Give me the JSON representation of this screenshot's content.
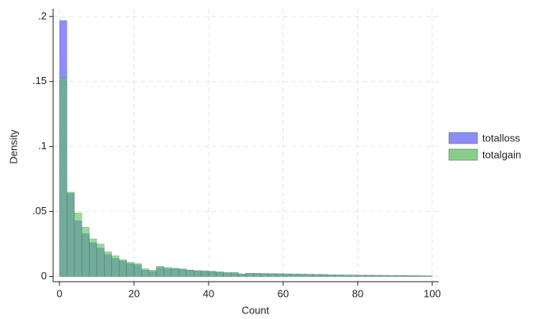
{
  "chart_data": {
    "type": "histogram",
    "xlabel": "Count",
    "ylabel": "Density",
    "bins": [
      0,
      2,
      4,
      6,
      8,
      10,
      12,
      14,
      16,
      18,
      20,
      22,
      24,
      26,
      28,
      30,
      32,
      34,
      36,
      38,
      40,
      42,
      44,
      46,
      48,
      50,
      52,
      54,
      56,
      58,
      60,
      62,
      64,
      66,
      68,
      70,
      72,
      74,
      76,
      78,
      80,
      82,
      84,
      86,
      88,
      90,
      92,
      94,
      96,
      98,
      100
    ],
    "series": [
      {
        "name": "totalloss",
        "color": "#7f7fff",
        "values": [
          0.197,
          0.064,
          0.043,
          0.033,
          0.026,
          0.022,
          0.017,
          0.014,
          0.012,
          0.01,
          0.009,
          0.005,
          0.004,
          0.007,
          0.006,
          0.006,
          0.0055,
          0.005,
          0.0045,
          0.004,
          0.004,
          0.0035,
          0.003,
          0.003,
          0.002,
          0.0025,
          0.0024,
          0.0023,
          0.0022,
          0.0021,
          0.002,
          0.0019,
          0.0018,
          0.0017,
          0.0016,
          0.0015,
          0.0012,
          0.0012,
          0.0011,
          0.0011,
          0.001,
          0.001,
          0.0009,
          0.0009,
          0.0008,
          0.0008,
          0.0007,
          0.0007,
          0.0006,
          0.0005
        ]
      },
      {
        "name": "totalgain",
        "color": "#5fbf5f",
        "values": [
          0.153,
          0.065,
          0.049,
          0.038,
          0.029,
          0.025,
          0.019,
          0.016,
          0.013,
          0.011,
          0.01,
          0.006,
          0.005,
          0.008,
          0.007,
          0.0065,
          0.006,
          0.005,
          0.0045,
          0.0045,
          0.004,
          0.0035,
          0.003,
          0.003,
          0.002,
          0.0025,
          0.0025,
          0.0024,
          0.0023,
          0.0022,
          0.0021,
          0.002,
          0.0019,
          0.0018,
          0.0017,
          0.0016,
          0.0013,
          0.0013,
          0.0012,
          0.0011,
          0.001,
          0.001,
          0.001,
          0.0009,
          0.0009,
          0.0008,
          0.0008,
          0.0007,
          0.0006,
          0.0005
        ]
      }
    ],
    "xlim": [
      -1.7,
      101.7
    ],
    "ylim": [
      -0.004,
      0.206
    ],
    "xticks": [
      0,
      20,
      40,
      60,
      80,
      100
    ],
    "yticks": [
      0,
      {
        "value": 0.05,
        "label": ".05"
      },
      {
        "value": 0.1,
        "label": ".1"
      },
      {
        "value": 0.15,
        "label": ".15"
      },
      {
        "value": 0.2,
        "label": ".2"
      }
    ],
    "grid": true,
    "legend": "right"
  }
}
